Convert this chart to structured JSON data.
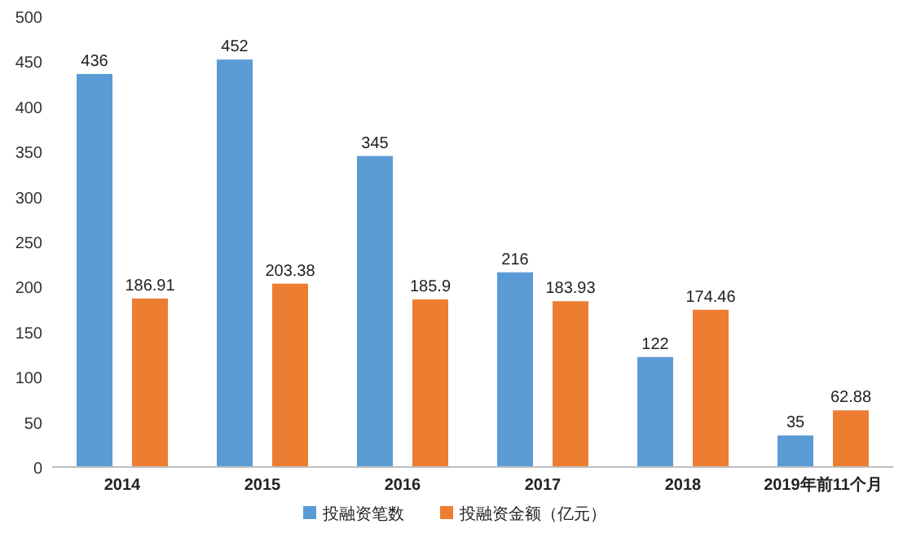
{
  "chart_data": {
    "type": "bar",
    "categories": [
      "2014",
      "2015",
      "2016",
      "2017",
      "2018",
      "2019年前11个月"
    ],
    "series": [
      {
        "name": "投融资笔数",
        "color": "#5b9bd5",
        "values": [
          436,
          452,
          345,
          216,
          122,
          35
        ]
      },
      {
        "name": "投融资金额（亿元）",
        "color": "#ed7d31",
        "values": [
          186.91,
          203.38,
          185.9,
          183.93,
          174.46,
          62.88
        ]
      }
    ],
    "ylim": [
      0,
      500
    ],
    "yticks": [
      0,
      50,
      100,
      150,
      200,
      250,
      300,
      350,
      400,
      450,
      500
    ],
    "data_labels": true,
    "legend": "bottom"
  }
}
